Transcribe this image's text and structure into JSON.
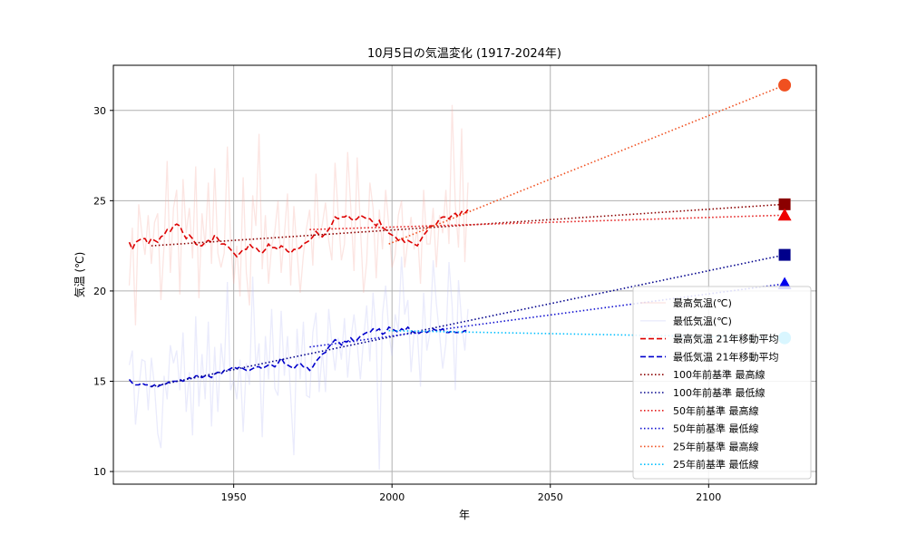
{
  "chart_data": {
    "type": "line",
    "title": "10月5日の気温変化 (1917-2024年)",
    "xlabel": "年",
    "ylabel": "気温 (℃)",
    "xlim": [
      1912,
      2134
    ],
    "ylim": [
      9.3,
      32.5
    ],
    "xticks": [
      1950,
      2000,
      2050,
      2100
    ],
    "yticks": [
      10,
      15,
      20,
      25,
      30
    ],
    "grid": true,
    "legend_position": "lower-right",
    "series": [
      {
        "name": "最高気温(℃)",
        "style": "solid-faint",
        "color": "#f4a9a0",
        "x": [
          1917,
          1918,
          1919,
          1920,
          1921,
          1922,
          1923,
          1924,
          1925,
          1926,
          1927,
          1928,
          1929,
          1930,
          1931,
          1932,
          1933,
          1934,
          1935,
          1936,
          1937,
          1938,
          1939,
          1940,
          1941,
          1942,
          1943,
          1944,
          1945,
          1946,
          1947,
          1948,
          1949,
          1950,
          1951,
          1952,
          1953,
          1954,
          1955,
          1956,
          1957,
          1958,
          1959,
          1960,
          1961,
          1962,
          1963,
          1964,
          1965,
          1966,
          1967,
          1968,
          1969,
          1970,
          1971,
          1972,
          1973,
          1974,
          1975,
          1976,
          1977,
          1978,
          1979,
          1980,
          1981,
          1982,
          1983,
          1984,
          1985,
          1986,
          1987,
          1988,
          1989,
          1990,
          1991,
          1992,
          1993,
          1994,
          1995,
          1996,
          1997,
          1998,
          1999,
          2000,
          2001,
          2002,
          2003,
          2004,
          2005,
          2006,
          2007,
          2008,
          2009,
          2010,
          2011,
          2012,
          2013,
          2014,
          2015,
          2016,
          2017,
          2018,
          2019,
          2020,
          2021,
          2022,
          2023,
          2024
        ],
        "y": [
          20.3,
          23.5,
          18.1,
          24.8,
          23.2,
          22.0,
          24.2,
          21.5,
          23.8,
          24.3,
          19.5,
          22.5,
          27.2,
          21.0,
          24.6,
          25.6,
          19.8,
          26.2,
          23.2,
          24.6,
          21.8,
          26.9,
          19.6,
          24.3,
          22.5,
          26.0,
          21.5,
          26.8,
          22.1,
          21.3,
          22.1,
          28.0,
          22.8,
          20.4,
          22.5,
          19.7,
          26.3,
          21.0,
          19.2,
          25.3,
          23.6,
          28.7,
          21.2,
          24.2,
          20.4,
          22.5,
          23.3,
          25.0,
          21.0,
          23.1,
          25.4,
          20.3,
          24.7,
          22.2,
          19.9,
          22.0,
          23.5,
          24.5,
          21.4,
          26.5,
          22.9,
          23.7,
          24.9,
          22.8,
          21.7,
          27.1,
          24.2,
          21.7,
          22.6,
          27.7,
          24.6,
          21.1,
          27.4,
          23.6,
          19.9,
          21.6,
          26.0,
          24.6,
          20.7,
          24.5,
          22.3,
          25.6,
          23.6,
          21.3,
          22.0,
          24.2,
          25.0,
          21.3,
          22.8,
          24.1,
          22.3,
          23.5,
          20.4,
          25.6,
          22.6,
          22.6,
          24.6,
          21.3,
          24.2,
          23.2,
          25.6,
          22.6,
          30.3,
          24.8,
          22.4,
          29.0,
          21.6,
          26.0
        ]
      },
      {
        "name": "最低気温(℃)",
        "style": "solid-faint",
        "color": "#b8bdf6",
        "x": [
          1917,
          1918,
          1919,
          1920,
          1921,
          1922,
          1923,
          1924,
          1925,
          1926,
          1927,
          1928,
          1929,
          1930,
          1931,
          1932,
          1933,
          1934,
          1935,
          1936,
          1937,
          1938,
          1939,
          1940,
          1941,
          1942,
          1943,
          1944,
          1945,
          1946,
          1947,
          1948,
          1949,
          1950,
          1951,
          1952,
          1953,
          1954,
          1955,
          1956,
          1957,
          1958,
          1959,
          1960,
          1961,
          1962,
          1963,
          1964,
          1965,
          1966,
          1967,
          1968,
          1969,
          1970,
          1971,
          1972,
          1973,
          1974,
          1975,
          1976,
          1977,
          1978,
          1979,
          1980,
          1981,
          1982,
          1983,
          1984,
          1985,
          1986,
          1987,
          1988,
          1989,
          1990,
          1991,
          1992,
          1993,
          1994,
          1995,
          1996,
          1997,
          1998,
          1999,
          2000,
          2001,
          2002,
          2003,
          2004,
          2005,
          2006,
          2007,
          2008,
          2009,
          2010,
          2011,
          2012,
          2013,
          2014,
          2015,
          2016,
          2017,
          2018,
          2019,
          2020,
          2021,
          2022,
          2023,
          2024
        ],
        "y": [
          15.9,
          16.7,
          12.6,
          14.5,
          16.2,
          16.1,
          13.4,
          16.3,
          14.7,
          12.1,
          11.3,
          15.3,
          14.0,
          17.0,
          16.0,
          16.7,
          14.5,
          17.7,
          13.3,
          15.5,
          12.0,
          18.6,
          13.6,
          16.5,
          14.0,
          18.3,
          12.5,
          16.9,
          13.3,
          17.1,
          15.5,
          20.5,
          14.5,
          15.1,
          14.0,
          16.2,
          12.2,
          16.0,
          14.8,
          20.8,
          15.7,
          17.1,
          11.9,
          17.5,
          15.1,
          19.0,
          14.6,
          14.2,
          18.9,
          15.3,
          17.5,
          14.2,
          10.9,
          17.9,
          15.1,
          18.3,
          14.2,
          14.1,
          17.7,
          18.8,
          14.4,
          16.7,
          14.4,
          19.0,
          17.1,
          15.6,
          17.4,
          16.2,
          18.5,
          15.2,
          17.3,
          18.7,
          17.1,
          15.1,
          17.3,
          19.2,
          16.1,
          19.9,
          17.5,
          10.1,
          18.7,
          20.3,
          17.7,
          16.4,
          18.7,
          17.8,
          21.9,
          18.7,
          19.5,
          15.5,
          17.7,
          17.8,
          14.7,
          19.9,
          16.7,
          17.7,
          21.7,
          19.3,
          17.6,
          15.7,
          17.1,
          21.6,
          19.2,
          14.5,
          20.6,
          18.3,
          16.7,
          19.0
        ]
      },
      {
        "name": "最高気温 21年移動平均",
        "style": "dashed",
        "color": "#dd0000",
        "x": [
          1917,
          1918,
          1919,
          1920,
          1921,
          1922,
          1923,
          1924,
          1925,
          1926,
          1927,
          1928,
          1929,
          1930,
          1931,
          1932,
          1933,
          1934,
          1935,
          1936,
          1937,
          1938,
          1939,
          1940,
          1941,
          1942,
          1943,
          1944,
          1945,
          1946,
          1947,
          1948,
          1949,
          1950,
          1951,
          1952,
          1953,
          1954,
          1955,
          1956,
          1957,
          1958,
          1959,
          1960,
          1961,
          1962,
          1963,
          1964,
          1965,
          1966,
          1967,
          1968,
          1969,
          1970,
          1971,
          1972,
          1973,
          1974,
          1975,
          1976,
          1977,
          1978,
          1979,
          1980,
          1981,
          1982,
          1983,
          1984,
          1985,
          1986,
          1987,
          1988,
          1989,
          1990,
          1991,
          1992,
          1993,
          1994,
          1995,
          1996,
          1997,
          1998,
          1999,
          2000,
          2001,
          2002,
          2003,
          2004,
          2005,
          2006,
          2007,
          2008,
          2009,
          2010,
          2011,
          2012,
          2013,
          2014,
          2015,
          2016,
          2017,
          2018,
          2019,
          2020,
          2021,
          2022,
          2023,
          2024
        ],
        "y": [
          22.7,
          22.3,
          22.7,
          22.8,
          22.9,
          22.9,
          22.6,
          22.9,
          22.8,
          22.7,
          23.0,
          23.1,
          23.4,
          23.3,
          23.6,
          23.7,
          23.6,
          23.2,
          22.9,
          23.1,
          22.9,
          22.6,
          22.5,
          22.5,
          22.7,
          22.8,
          22.7,
          23.1,
          22.9,
          22.6,
          22.6,
          22.5,
          22.3,
          22.1,
          21.9,
          22.1,
          22.3,
          22.3,
          22.6,
          22.4,
          22.4,
          22.2,
          22.1,
          22.3,
          22.6,
          22.4,
          22.4,
          22.3,
          22.5,
          22.4,
          22.2,
          22.1,
          22.3,
          22.3,
          22.4,
          22.6,
          22.7,
          22.8,
          23.0,
          23.3,
          23.1,
          23.0,
          23.2,
          23.4,
          23.7,
          24.1,
          24.0,
          24.1,
          24.1,
          24.2,
          24.0,
          23.9,
          24.0,
          24.2,
          24.1,
          24.0,
          24.0,
          23.8,
          23.6,
          23.9,
          23.5,
          23.4,
          23.2,
          23.1,
          23.0,
          22.8,
          22.9,
          22.7,
          22.8,
          22.7,
          22.6,
          22.5,
          22.8,
          23.1,
          23.3,
          23.6,
          23.6,
          23.7,
          24.0,
          24.1,
          24.1,
          24.0,
          24.2,
          24.3,
          24.1,
          24.4,
          24.3,
          24.5
        ]
      },
      {
        "name": "最低気温 21年移動平均",
        "style": "dashed",
        "color": "#0000cc",
        "x": [
          1917,
          1918,
          1919,
          1920,
          1921,
          1922,
          1923,
          1924,
          1925,
          1926,
          1927,
          1928,
          1929,
          1930,
          1931,
          1932,
          1933,
          1934,
          1935,
          1936,
          1937,
          1938,
          1939,
          1940,
          1941,
          1942,
          1943,
          1944,
          1945,
          1946,
          1947,
          1948,
          1949,
          1950,
          1951,
          1952,
          1953,
          1954,
          1955,
          1956,
          1957,
          1958,
          1959,
          1960,
          1961,
          1962,
          1963,
          1964,
          1965,
          1966,
          1967,
          1968,
          1969,
          1970,
          1971,
          1972,
          1973,
          1974,
          1975,
          1976,
          1977,
          1978,
          1979,
          1980,
          1981,
          1982,
          1983,
          1984,
          1985,
          1986,
          1987,
          1988,
          1989,
          1990,
          1991,
          1992,
          1993,
          1994,
          1995,
          1996,
          1997,
          1998,
          1999,
          2000,
          2001,
          2002,
          2003,
          2004,
          2005,
          2006,
          2007,
          2008,
          2009,
          2010,
          2011,
          2012,
          2013,
          2014,
          2015,
          2016,
          2017,
          2018,
          2019,
          2020,
          2021,
          2022,
          2023,
          2024
        ],
        "y": [
          15.1,
          14.9,
          14.8,
          14.8,
          14.9,
          14.8,
          14.8,
          14.7,
          14.8,
          14.7,
          14.8,
          14.8,
          14.9,
          15.0,
          15.0,
          15.0,
          15.1,
          15.0,
          15.1,
          15.2,
          15.1,
          15.3,
          15.3,
          15.2,
          15.3,
          15.3,
          15.2,
          15.4,
          15.5,
          15.4,
          15.6,
          15.6,
          15.7,
          15.8,
          15.7,
          15.8,
          15.7,
          15.6,
          15.6,
          15.7,
          15.8,
          15.8,
          15.7,
          15.8,
          15.9,
          15.9,
          15.8,
          16.0,
          16.3,
          16.0,
          15.9,
          15.8,
          15.7,
          15.9,
          16.0,
          15.8,
          15.8,
          15.6,
          15.8,
          16.1,
          16.3,
          16.5,
          16.6,
          16.9,
          17.1,
          17.3,
          17.2,
          17.0,
          17.2,
          17.2,
          17.4,
          17.2,
          17.3,
          17.5,
          17.6,
          17.7,
          17.7,
          17.9,
          17.8,
          17.9,
          17.6,
          17.7,
          18.0,
          17.9,
          17.8,
          17.7,
          17.9,
          17.8,
          18.0,
          17.8,
          17.7,
          17.6,
          17.7,
          17.8,
          17.7,
          17.8,
          17.9,
          17.8,
          17.8,
          17.9,
          17.7,
          17.7,
          17.8,
          17.7,
          17.7,
          17.7,
          17.8,
          17.8
        ]
      },
      {
        "name": "100年前基準 最高線",
        "style": "dotted",
        "color": "#8b0000",
        "x": [
          1924,
          2124
        ],
        "y": [
          22.5,
          24.8
        ]
      },
      {
        "name": "100年前基準 最低線",
        "style": "dotted",
        "color": "#00008b",
        "x": [
          1924,
          2124
        ],
        "y": [
          14.7,
          22.0
        ]
      },
      {
        "name": "50年前基準 最高線",
        "style": "dotted",
        "color": "#e41a1a",
        "x": [
          1974,
          2124
        ],
        "y": [
          23.4,
          24.2
        ]
      },
      {
        "name": "50年前基準 最低線",
        "style": "dotted",
        "color": "#1010d0",
        "x": [
          1974,
          2124
        ],
        "y": [
          16.9,
          20.4
        ]
      },
      {
        "name": "25年前基準 最高線",
        "style": "dotted",
        "color": "#f05020",
        "x": [
          1999,
          2124
        ],
        "y": [
          22.6,
          31.4
        ]
      },
      {
        "name": "25年前基準 最低線",
        "style": "dotted",
        "color": "#00bfff",
        "x": [
          1999,
          2124
        ],
        "y": [
          17.8,
          17.4
        ]
      }
    ],
    "markers": [
      {
        "shape": "circle",
        "color": "#f05020",
        "x": 2124,
        "y": 31.4
      },
      {
        "shape": "square",
        "color": "#8b0000",
        "x": 2124,
        "y": 24.8
      },
      {
        "shape": "triangle",
        "color": "#ee0000",
        "x": 2124,
        "y": 24.2
      },
      {
        "shape": "square",
        "color": "#00008b",
        "x": 2124,
        "y": 22.0
      },
      {
        "shape": "triangle",
        "color": "#0000ee",
        "x": 2124,
        "y": 20.4
      },
      {
        "shape": "circle",
        "color": "#00bfff",
        "x": 2124,
        "y": 17.4
      }
    ]
  }
}
